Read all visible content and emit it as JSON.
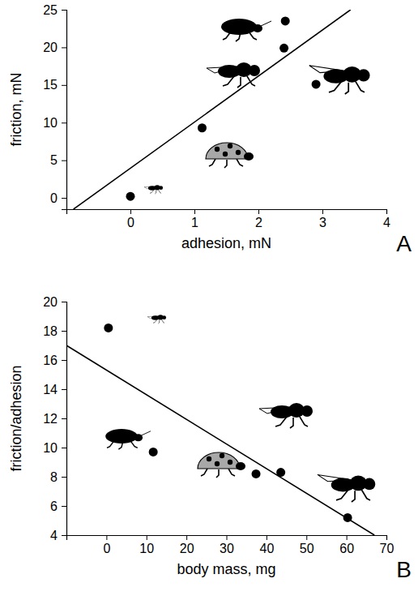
{
  "chart_data": [
    {
      "type": "scatter",
      "annotation": "A",
      "x_label": "adhesion, mN",
      "y_label": "friction, mN",
      "xlim": [
        -1,
        4
      ],
      "xticks": [
        0,
        1,
        2,
        3,
        4
      ],
      "ylim": [
        -1.5,
        25
      ],
      "yticks": [
        0,
        5,
        10,
        15,
        20,
        25
      ],
      "series": [
        {
          "type": "scatter",
          "marker": "circle",
          "color": "#000000",
          "x": [
            0,
            1.12,
            2.42,
            2.4,
            2.9
          ],
          "values": [
            0.2,
            9.3,
            23.5,
            19.9,
            15.1
          ]
        },
        {
          "type": "line",
          "line_style": "solid",
          "color": "#000000",
          "x": [
            -0.89,
            3.44
          ],
          "values": [
            -1.5,
            25
          ]
        }
      ]
    },
    {
      "type": "scatter",
      "annotation": "B",
      "x_label": "body mass, mg",
      "y_label": "friction/adhesion",
      "xlim": [
        -10,
        70
      ],
      "xticks": [
        0,
        10,
        20,
        30,
        40,
        50,
        60,
        70
      ],
      "ylim": [
        4,
        20
      ],
      "yticks": [
        4,
        6,
        8,
        10,
        12,
        14,
        16,
        18,
        20
      ],
      "series": [
        {
          "type": "scatter",
          "marker": "circle",
          "color": "#000000",
          "x": [
            0.5,
            11.7,
            37.4,
            43.6,
            60.3
          ],
          "values": [
            18.2,
            9.7,
            8.2,
            8.3,
            5.2
          ]
        },
        {
          "type": "line",
          "line_style": "solid",
          "color": "#000000",
          "x": [
            -10,
            67
          ],
          "values": [
            17,
            4
          ]
        }
      ]
    }
  ]
}
